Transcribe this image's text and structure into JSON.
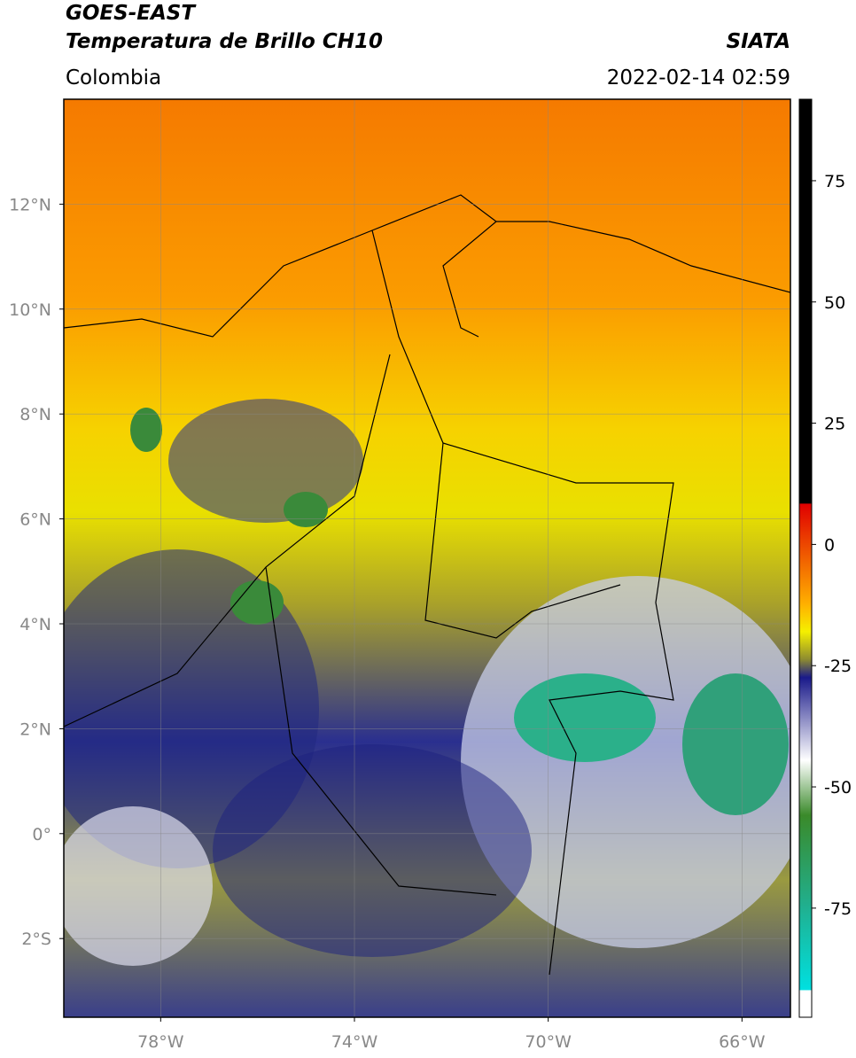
{
  "header": {
    "title": "GOES-EAST",
    "subtitle": "Temperatura de Brillo CH10",
    "region": "Colombia",
    "source": "SIATA",
    "timestamp": "2022-02-14 02:59"
  },
  "map": {
    "xlim": [
      -80,
      -65
    ],
    "ylim": [
      -3.5,
      14
    ],
    "xticks": [
      {
        "value": -78,
        "label": "78°W"
      },
      {
        "value": -74,
        "label": "74°W"
      },
      {
        "value": -70,
        "label": "70°W"
      },
      {
        "value": -66,
        "label": "66°W"
      }
    ],
    "yticks": [
      {
        "value": 12,
        "label": "12°N"
      },
      {
        "value": 10,
        "label": "10°N"
      },
      {
        "value": 8,
        "label": "8°N"
      },
      {
        "value": 6,
        "label": "6°N"
      },
      {
        "value": 4,
        "label": "4°N"
      },
      {
        "value": 2,
        "label": "2°N"
      },
      {
        "value": 0,
        "label": "0°"
      },
      {
        "value": -2,
        "label": "2°S"
      }
    ],
    "grid": true
  },
  "colorbar": {
    "clim": [
      -97.5,
      91.8
    ],
    "ticks": [
      75,
      50,
      25,
      0,
      -25,
      -50,
      -75
    ]
  }
}
